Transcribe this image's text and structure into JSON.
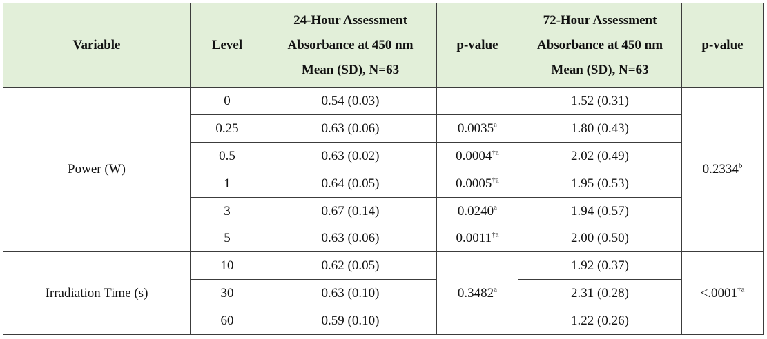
{
  "header": {
    "variable": "Variable",
    "level": "Level",
    "a24_line1": "24-Hour Assessment",
    "a24_line2": "Absorbance at 450 nm",
    "a24_line3": "Mean (SD), N=63",
    "pvalue1": "p-value",
    "a72_line1": "72-Hour Assessment",
    "a72_line2": "Absorbance at 450 nm",
    "a72_line3": "Mean (SD), N=63",
    "pvalue2": "p-value"
  },
  "power": {
    "label": "Power (W)",
    "p72": "0.2334",
    "p72_sup": "b",
    "rows": [
      {
        "level": "0",
        "mean24": "0.54 (0.03)",
        "p24": "",
        "p24_sup": "",
        "mean72": "1.52 (0.31)"
      },
      {
        "level": "0.25",
        "mean24": "0.63 (0.06)",
        "p24": "0.0035",
        "p24_sup": "a",
        "mean72": "1.80 (0.43)"
      },
      {
        "level": "0.5",
        "mean24": "0.63 (0.02)",
        "p24": "0.0004",
        "p24_sup": "†a",
        "mean72": "2.02 (0.49)"
      },
      {
        "level": "1",
        "mean24": "0.64 (0.05)",
        "p24": "0.0005",
        "p24_sup": "†a",
        "mean72": "1.95 (0.53)"
      },
      {
        "level": "3",
        "mean24": "0.67 (0.14)",
        "p24": "0.0240",
        "p24_sup": "a",
        "mean72": "1.94 (0.57)"
      },
      {
        "level": "5",
        "mean24": "0.63 (0.06)",
        "p24": "0.0011",
        "p24_sup": "†a",
        "mean72": "2.00 (0.50)"
      }
    ]
  },
  "irradiation": {
    "label": "Irradiation Time (s)",
    "p24": "0.3482",
    "p24_sup": "a",
    "p72": "<.0001",
    "p72_sup": "†a",
    "rows": [
      {
        "level": "10",
        "mean24": "0.62 (0.05)",
        "mean72": "1.92 (0.37)"
      },
      {
        "level": "30",
        "mean24": "0.63 (0.10)",
        "mean72": "2.31 (0.28)"
      },
      {
        "level": "60",
        "mean24": "0.59 (0.10)",
        "mean72": "1.22 (0.26)"
      }
    ]
  },
  "colors": {
    "header_bg": "#e2efd9",
    "border": "#3c3c3c",
    "text": "#111111"
  }
}
